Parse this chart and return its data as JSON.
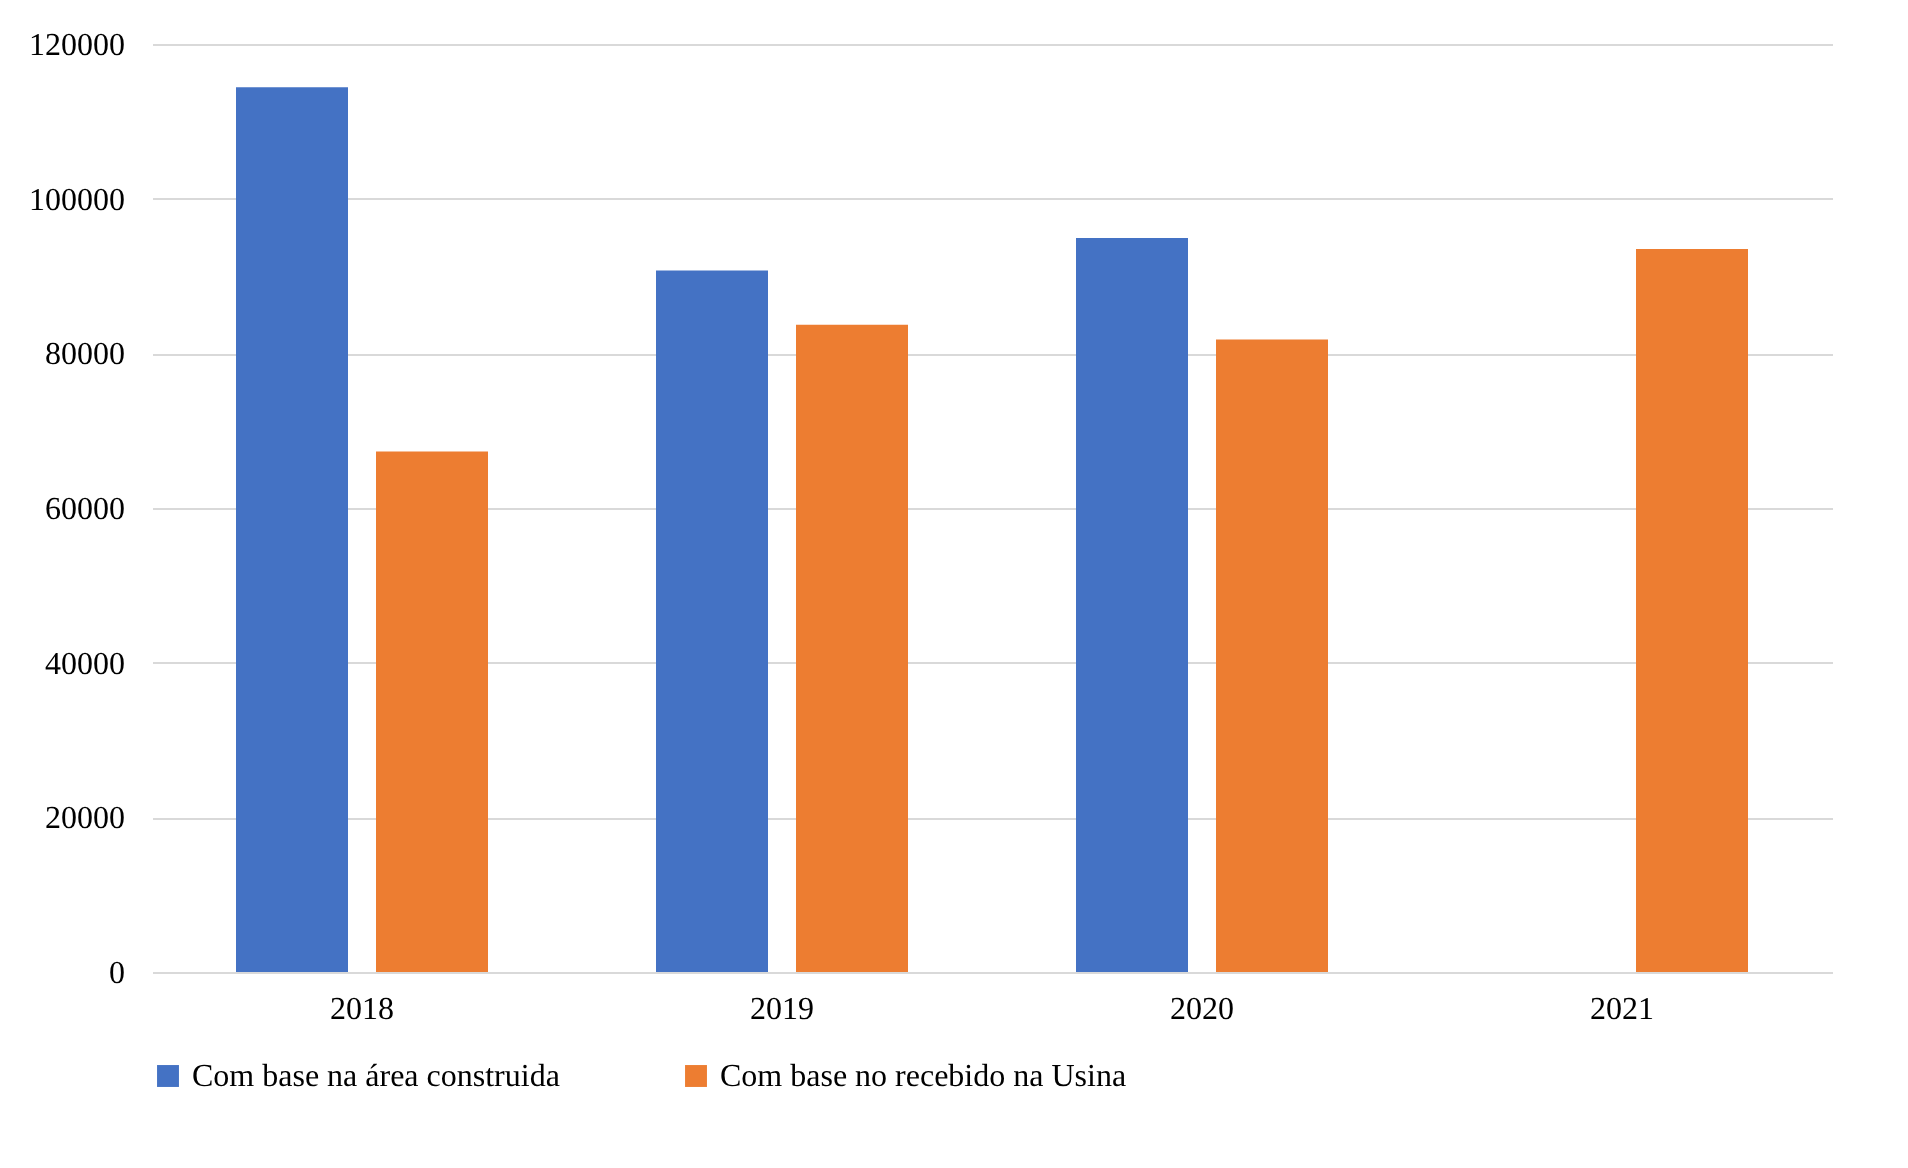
{
  "chart_data": {
    "type": "bar",
    "categories": [
      "2018",
      "2019",
      "2020",
      "2021"
    ],
    "series": [
      {
        "name": "Com base na área construida",
        "color": "#4472c4",
        "values": [
          114400,
          90700,
          94900,
          null
        ]
      },
      {
        "name": "Com base no recebido na Usina",
        "color": "#ed7d31",
        "values": [
          67300,
          83700,
          81800,
          93500
        ]
      }
    ],
    "ylim": [
      0,
      120000
    ],
    "yticks": [
      0,
      20000,
      40000,
      60000,
      80000,
      100000,
      120000
    ],
    "grid": "y",
    "legend": "bottom"
  }
}
